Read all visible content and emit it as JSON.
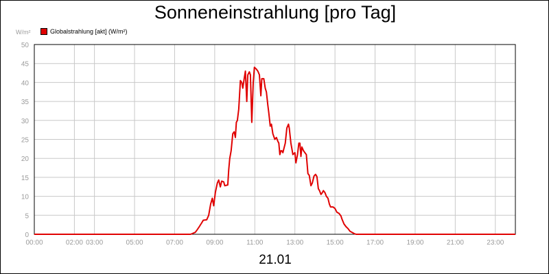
{
  "chart_data": {
    "type": "line",
    "title": "Sonneneinstrahlung [pro Tag]",
    "unit_label": "W/m²",
    "date_label": "21.01",
    "legend": "Globalstrahlung [akt] (W/m²)",
    "series_color": "#e00000",
    "grid": true,
    "legend_position": "top-left",
    "ylim": [
      0,
      50
    ],
    "y_ticks": [
      0,
      5,
      10,
      15,
      20,
      25,
      30,
      35,
      40,
      45,
      50
    ],
    "xlim": [
      0,
      24
    ],
    "x_ticks": [
      {
        "value": 0,
        "label": "00:00"
      },
      {
        "value": 2,
        "label": "02:00"
      },
      {
        "value": 3,
        "label": "03:00"
      },
      {
        "value": 5,
        "label": "05:00"
      },
      {
        "value": 7,
        "label": "07:00"
      },
      {
        "value": 9,
        "label": "09:00"
      },
      {
        "value": 11,
        "label": "11:00"
      },
      {
        "value": 13,
        "label": "13:00"
      },
      {
        "value": 15,
        "label": "15:00"
      },
      {
        "value": 17,
        "label": "17:00"
      },
      {
        "value": 19,
        "label": "19:00"
      },
      {
        "value": 21,
        "label": "21:00"
      },
      {
        "value": 23,
        "label": "23:00"
      }
    ],
    "grid_x": [
      0,
      2,
      3,
      5,
      7,
      9,
      11,
      13,
      15,
      17,
      19,
      21,
      23
    ],
    "series": [
      {
        "name": "Globalstrahlung [akt] (W/m²)",
        "points": [
          [
            0.0,
            0
          ],
          [
            7.8,
            0
          ],
          [
            8.03,
            0.5
          ],
          [
            8.1,
            1
          ],
          [
            8.23,
            2
          ],
          [
            8.35,
            3
          ],
          [
            8.43,
            3.7
          ],
          [
            8.6,
            3.8
          ],
          [
            8.7,
            5
          ],
          [
            8.8,
            8
          ],
          [
            8.88,
            9.5
          ],
          [
            8.95,
            7.5
          ],
          [
            9.03,
            11
          ],
          [
            9.13,
            13.5
          ],
          [
            9.2,
            14.3
          ],
          [
            9.28,
            12.5
          ],
          [
            9.35,
            14
          ],
          [
            9.45,
            13.8
          ],
          [
            9.5,
            12.8
          ],
          [
            9.65,
            13
          ],
          [
            9.7,
            17
          ],
          [
            9.75,
            20
          ],
          [
            9.82,
            22
          ],
          [
            9.9,
            26.5
          ],
          [
            9.97,
            27
          ],
          [
            10.03,
            25.5
          ],
          [
            10.08,
            29.5
          ],
          [
            10.13,
            30
          ],
          [
            10.2,
            33
          ],
          [
            10.28,
            40.5
          ],
          [
            10.35,
            40
          ],
          [
            10.4,
            38.5
          ],
          [
            10.47,
            41
          ],
          [
            10.53,
            43
          ],
          [
            10.6,
            35
          ],
          [
            10.65,
            42
          ],
          [
            10.73,
            42.8
          ],
          [
            10.78,
            42
          ],
          [
            10.85,
            29.5
          ],
          [
            10.92,
            40
          ],
          [
            10.98,
            44
          ],
          [
            11.08,
            43.5
          ],
          [
            11.15,
            43
          ],
          [
            11.23,
            42
          ],
          [
            11.3,
            36.5
          ],
          [
            11.35,
            41
          ],
          [
            11.45,
            41
          ],
          [
            11.52,
            38.5
          ],
          [
            11.58,
            37.5
          ],
          [
            11.65,
            34
          ],
          [
            11.7,
            32
          ],
          [
            11.77,
            28.5
          ],
          [
            11.83,
            29
          ],
          [
            11.9,
            26.5
          ],
          [
            12.0,
            25
          ],
          [
            12.08,
            25.5
          ],
          [
            12.15,
            24.5
          ],
          [
            12.2,
            24
          ],
          [
            12.25,
            21
          ],
          [
            12.3,
            22
          ],
          [
            12.35,
            22
          ],
          [
            12.4,
            21.5
          ],
          [
            12.45,
            22.5
          ],
          [
            12.52,
            24
          ],
          [
            12.6,
            28
          ],
          [
            12.68,
            29
          ],
          [
            12.72,
            28
          ],
          [
            12.8,
            24
          ],
          [
            12.9,
            21
          ],
          [
            13.0,
            21.5
          ],
          [
            13.05,
            18.8
          ],
          [
            13.13,
            21
          ],
          [
            13.2,
            24
          ],
          [
            13.25,
            24
          ],
          [
            13.3,
            20.5
          ],
          [
            13.35,
            23
          ],
          [
            13.43,
            22
          ],
          [
            13.5,
            21.5
          ],
          [
            13.57,
            21
          ],
          [
            13.65,
            16
          ],
          [
            13.72,
            15.5
          ],
          [
            13.8,
            12.8
          ],
          [
            13.87,
            13.5
          ],
          [
            13.95,
            15.3
          ],
          [
            14.03,
            15.8
          ],
          [
            14.1,
            15.2
          ],
          [
            14.17,
            12
          ],
          [
            14.23,
            11.5
          ],
          [
            14.3,
            10.5
          ],
          [
            14.35,
            10.8
          ],
          [
            14.42,
            11.5
          ],
          [
            14.5,
            11
          ],
          [
            14.57,
            10
          ],
          [
            14.65,
            9.5
          ],
          [
            14.72,
            8
          ],
          [
            14.78,
            7.2
          ],
          [
            14.9,
            7.2
          ],
          [
            15.0,
            6.8
          ],
          [
            15.1,
            5.8
          ],
          [
            15.2,
            5.5
          ],
          [
            15.3,
            4.8
          ],
          [
            15.35,
            4
          ],
          [
            15.45,
            2.7
          ],
          [
            15.55,
            2
          ],
          [
            15.65,
            1.5
          ],
          [
            15.75,
            0.8
          ],
          [
            15.85,
            0.5
          ],
          [
            15.95,
            0.2
          ],
          [
            16.05,
            0
          ],
          [
            24.0,
            0
          ]
        ]
      }
    ]
  }
}
